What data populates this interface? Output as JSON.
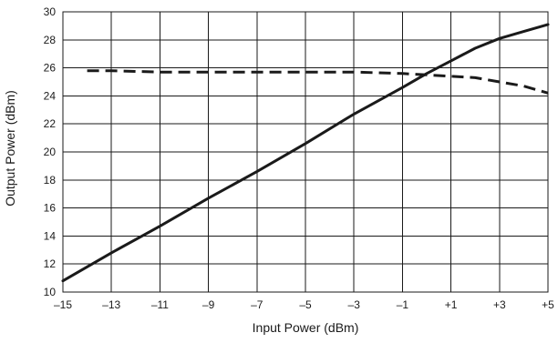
{
  "chart_data": {
    "type": "line",
    "xlabel": "Input Power (dBm)",
    "ylabel": "Output Power (dBm)",
    "xlim": [
      -15,
      5
    ],
    "ylim": [
      10,
      30
    ],
    "grid": true,
    "x_ticks": [
      -15,
      -13,
      -11,
      -9,
      -7,
      -5,
      -3,
      -1,
      1,
      3,
      5
    ],
    "x_tick_labels": [
      "–15",
      "–13",
      "–11",
      "–9",
      "–7",
      "–5",
      "–3",
      "–1",
      "+1",
      "+3",
      "+5"
    ],
    "y_ticks": [
      10,
      12,
      14,
      16,
      18,
      20,
      22,
      24,
      26,
      28,
      30
    ],
    "y_tick_labels": [
      "10",
      "12",
      "14",
      "16",
      "18",
      "20",
      "22",
      "24",
      "26",
      "28",
      "30"
    ],
    "series": [
      {
        "style": "solid",
        "color": "#1a1a1a",
        "x": [
          -15,
          -13,
          -11,
          -9,
          -7,
          -5,
          -3,
          -1,
          0,
          1,
          2,
          3,
          4,
          5
        ],
        "y": [
          10.8,
          12.8,
          14.7,
          16.7,
          18.6,
          20.6,
          22.7,
          24.6,
          25.6,
          26.5,
          27.4,
          28.1,
          28.6,
          29.1
        ]
      },
      {
        "style": "dashed",
        "color": "#1a1a1a",
        "x": [
          -14,
          -13,
          -11,
          -9,
          -7,
          -5,
          -3,
          -1,
          0,
          1,
          2,
          3,
          4,
          5
        ],
        "y": [
          25.8,
          25.8,
          25.7,
          25.7,
          25.7,
          25.7,
          25.7,
          25.6,
          25.5,
          25.4,
          25.3,
          25.0,
          24.7,
          24.2
        ]
      }
    ]
  }
}
